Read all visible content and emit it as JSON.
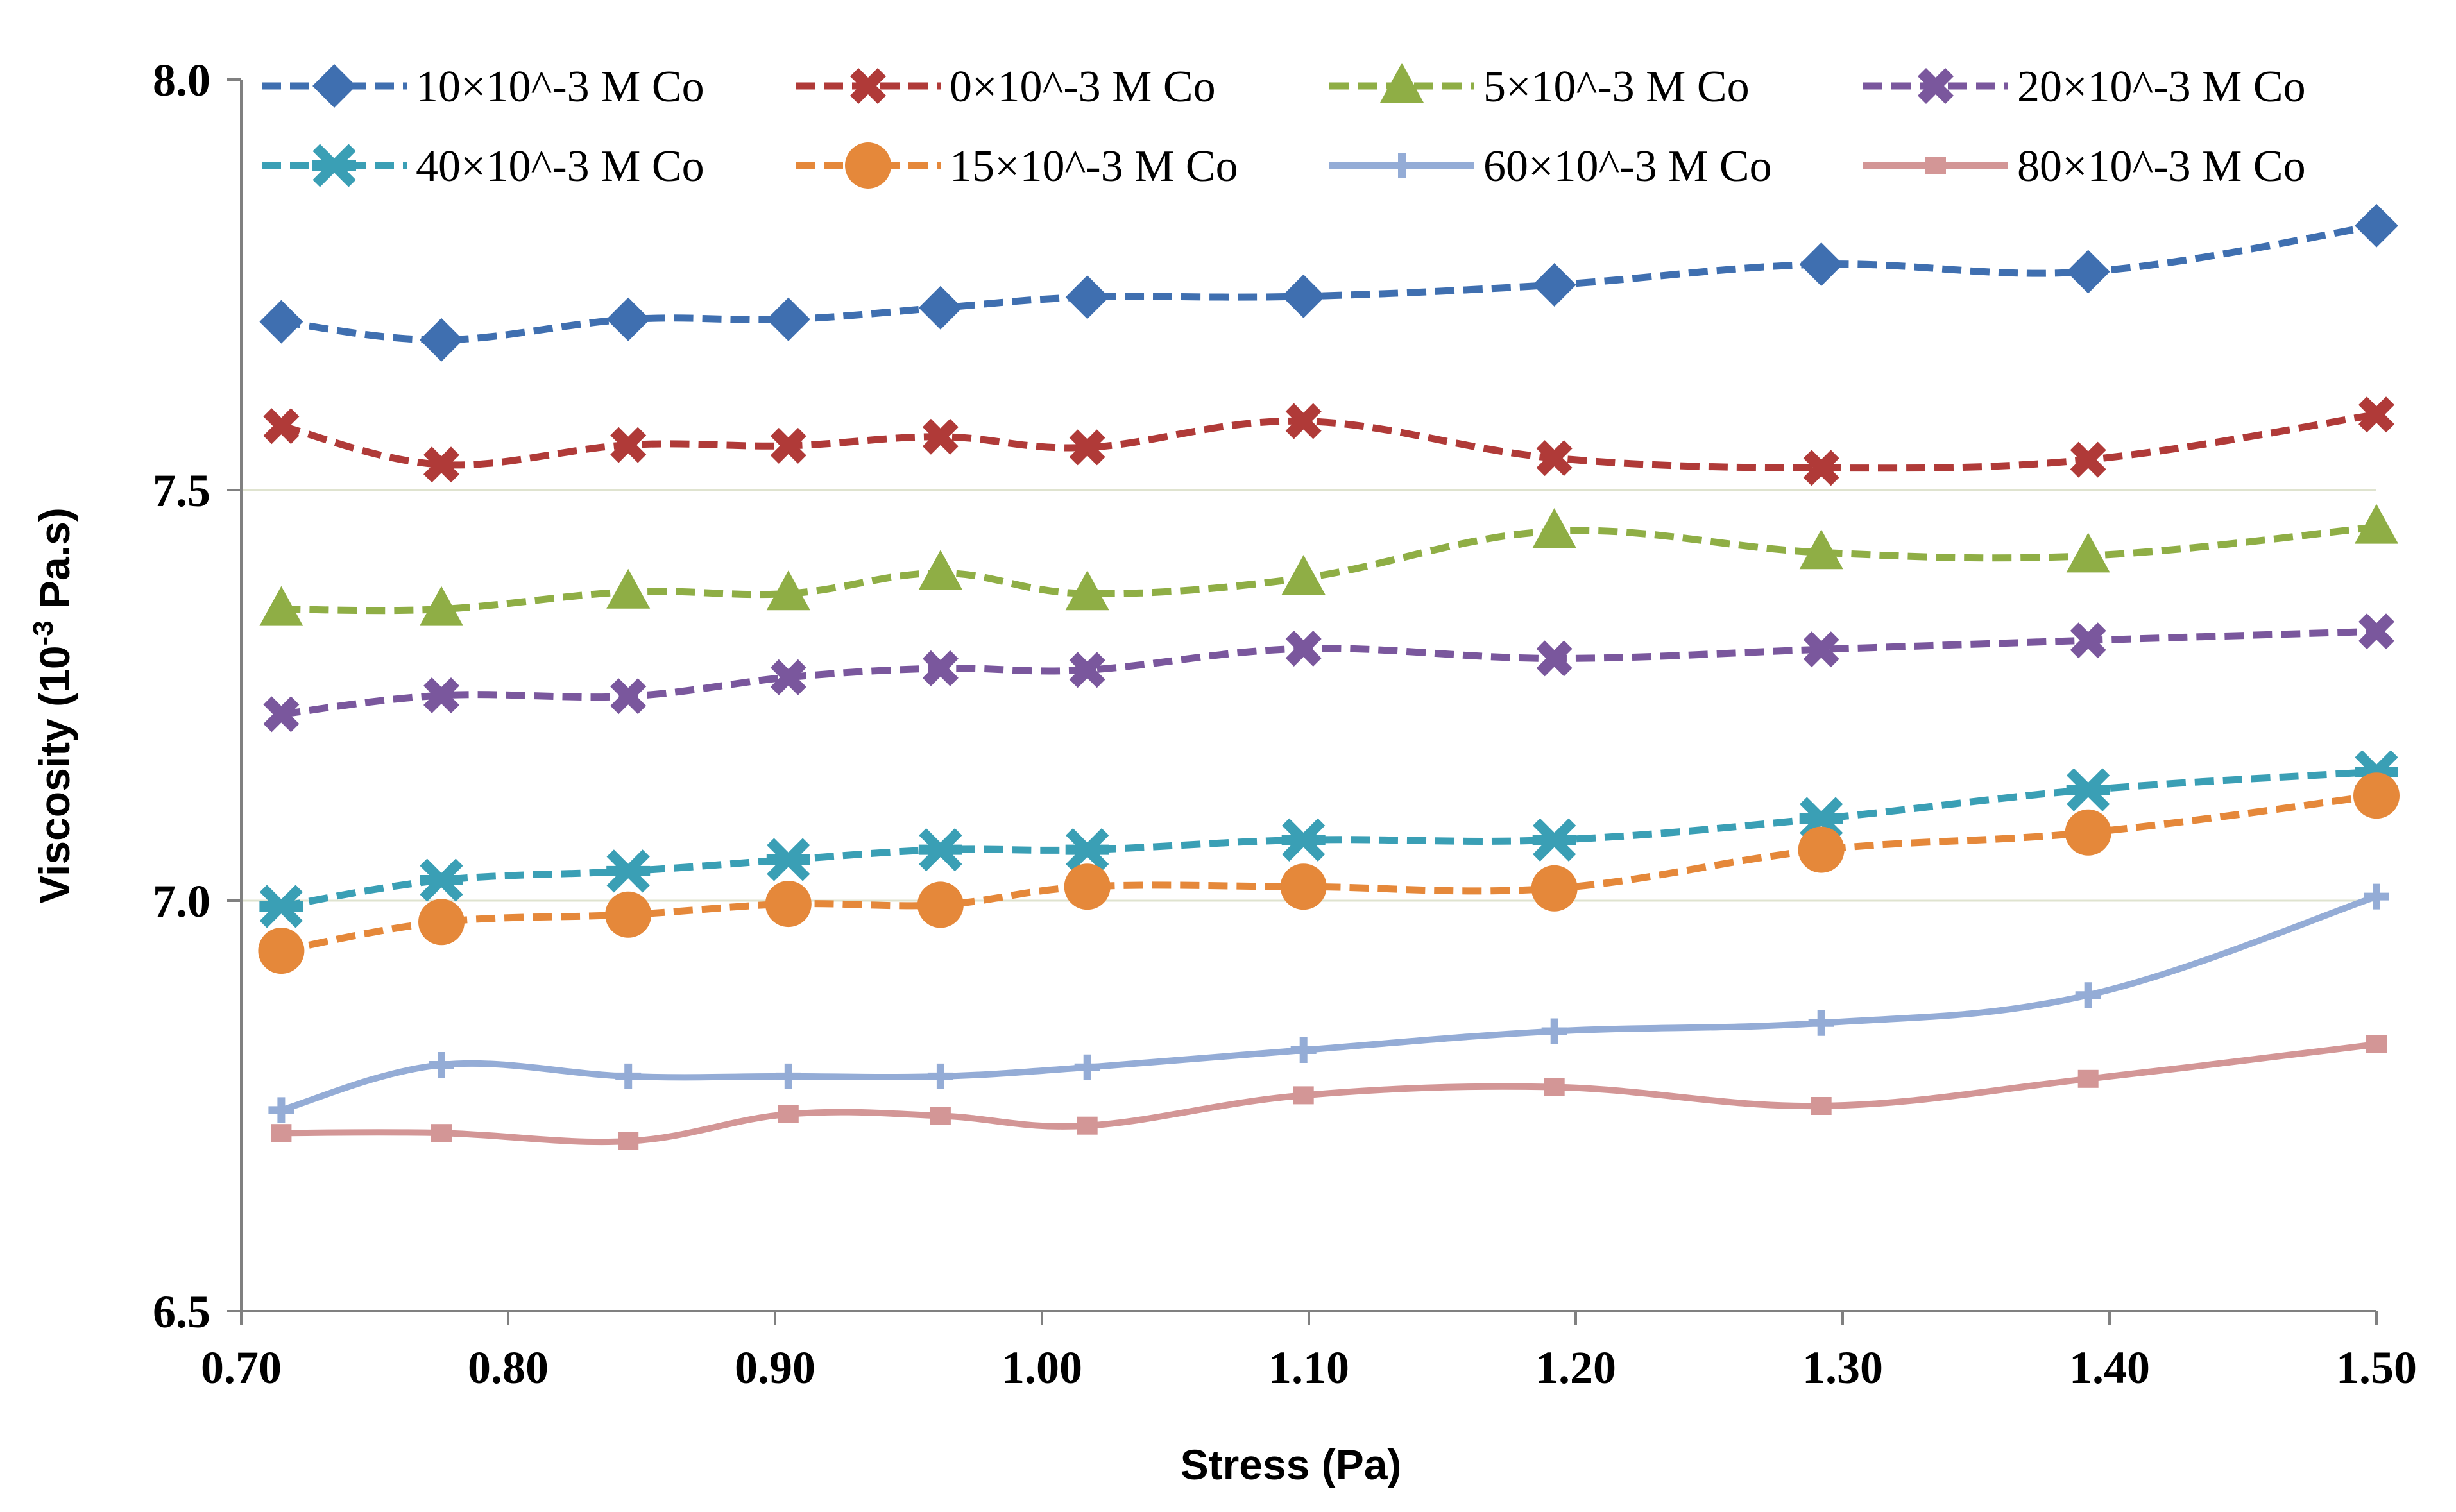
{
  "chart_data": {
    "type": "line",
    "title": "",
    "xlabel": "Stress (Pa)",
    "ylabel_main": "Viscosity (10",
    "ylabel_sup": "-3",
    "ylabel_tail": " Pa.s)",
    "xlim": [
      0.7,
      1.5
    ],
    "ylim": [
      6.5,
      8.0
    ],
    "x_ticks": [
      0.7,
      0.8,
      0.9,
      1.0,
      1.1,
      1.2,
      1.3,
      1.4,
      1.5
    ],
    "x_tick_labels": [
      "0.70",
      "0.80",
      "0.90",
      "1.00",
      "1.10",
      "1.20",
      "1.30",
      "1.40",
      "1.50"
    ],
    "y_ticks": [
      6.5,
      7.0,
      7.5,
      8.0
    ],
    "y_tick_labels": [
      "6.5",
      "7.0",
      "7.5",
      "8.0"
    ],
    "grid": "horizontal",
    "legend_position": "top",
    "series": [
      {
        "name": "10×10^-3 M Co",
        "color": "#3f6fb0",
        "marker": "diamond",
        "dash": "dashed",
        "points": [
          [
            0.715,
            7.705
          ],
          [
            0.775,
            7.683
          ],
          [
            0.845,
            7.708
          ],
          [
            0.905,
            7.708
          ],
          [
            0.962,
            7.722
          ],
          [
            1.017,
            7.735
          ],
          [
            1.098,
            7.736
          ],
          [
            1.192,
            7.75
          ],
          [
            1.292,
            7.775
          ],
          [
            1.392,
            7.766
          ],
          [
            1.5,
            7.822
          ]
        ]
      },
      {
        "name": "0×10^-3 M Co",
        "color": "#b03a38",
        "marker": "cross",
        "dash": "dashed",
        "points": [
          [
            0.715,
            7.578
          ],
          [
            0.775,
            7.531
          ],
          [
            0.845,
            7.555
          ],
          [
            0.905,
            7.554
          ],
          [
            0.962,
            7.565
          ],
          [
            1.017,
            7.552
          ],
          [
            1.098,
            7.584
          ],
          [
            1.192,
            7.539
          ],
          [
            1.292,
            7.527
          ],
          [
            1.392,
            7.537
          ],
          [
            1.5,
            7.592
          ]
        ]
      },
      {
        "name": "5×10^-3 M Co",
        "color": "#8fae45",
        "marker": "triangle",
        "dash": "dashed",
        "points": [
          [
            0.715,
            7.355
          ],
          [
            0.775,
            7.355
          ],
          [
            0.845,
            7.376
          ],
          [
            0.905,
            7.374
          ],
          [
            0.962,
            7.399
          ],
          [
            1.017,
            7.374
          ],
          [
            1.098,
            7.393
          ],
          [
            1.192,
            7.45
          ],
          [
            1.292,
            7.424
          ],
          [
            1.392,
            7.42
          ],
          [
            1.5,
            7.455
          ]
        ]
      },
      {
        "name": "20×10^-3 M Co",
        "color": "#7a579d",
        "marker": "cross",
        "dash": "dashed",
        "points": [
          [
            0.715,
            7.227
          ],
          [
            0.775,
            7.25
          ],
          [
            0.845,
            7.249
          ],
          [
            0.905,
            7.272
          ],
          [
            0.962,
            7.283
          ],
          [
            1.017,
            7.281
          ],
          [
            1.098,
            7.307
          ],
          [
            1.192,
            7.295
          ],
          [
            1.292,
            7.306
          ],
          [
            1.392,
            7.317
          ],
          [
            1.5,
            7.328
          ]
        ]
      },
      {
        "name": "40×10^-3 M Co",
        "color": "#3a9fb5",
        "marker": "star",
        "dash": "dashed",
        "points": [
          [
            0.715,
            6.993
          ],
          [
            0.775,
            7.025
          ],
          [
            0.845,
            7.036
          ],
          [
            0.905,
            7.05
          ],
          [
            0.962,
            7.062
          ],
          [
            1.017,
            7.062
          ],
          [
            1.098,
            7.074
          ],
          [
            1.192,
            7.074
          ],
          [
            1.292,
            7.1
          ],
          [
            1.392,
            7.135
          ],
          [
            1.5,
            7.157
          ]
        ]
      },
      {
        "name": "15×10^-3 M Co",
        "color": "#e5883a",
        "marker": "circle",
        "dash": "dashed",
        "points": [
          [
            0.715,
            6.939
          ],
          [
            0.775,
            6.974
          ],
          [
            0.845,
            6.983
          ],
          [
            0.905,
            6.996
          ],
          [
            0.962,
            6.995
          ],
          [
            1.017,
            7.017
          ],
          [
            1.098,
            7.017
          ],
          [
            1.192,
            7.015
          ],
          [
            1.292,
            7.062
          ],
          [
            1.392,
            7.083
          ],
          [
            1.5,
            7.128
          ]
        ]
      },
      {
        "name": "60×10^-3 M Co",
        "color": "#94acd6",
        "marker": "plus",
        "dash": "solid",
        "points": [
          [
            0.715,
            6.745
          ],
          [
            0.775,
            6.8
          ],
          [
            0.845,
            6.786
          ],
          [
            0.905,
            6.786
          ],
          [
            0.962,
            6.786
          ],
          [
            1.017,
            6.797
          ],
          [
            1.098,
            6.818
          ],
          [
            1.192,
            6.841
          ],
          [
            1.292,
            6.851
          ],
          [
            1.392,
            6.885
          ],
          [
            1.5,
            7.005
          ]
        ]
      },
      {
        "name": "80×10^-3 M Co",
        "color": "#d39696",
        "marker": "square",
        "dash": "solid",
        "points": [
          [
            0.715,
            6.717
          ],
          [
            0.775,
            6.717
          ],
          [
            0.845,
            6.707
          ],
          [
            0.905,
            6.74
          ],
          [
            0.962,
            6.738
          ],
          [
            1.017,
            6.726
          ],
          [
            1.098,
            6.763
          ],
          [
            1.192,
            6.773
          ],
          [
            1.292,
            6.75
          ],
          [
            1.392,
            6.783
          ],
          [
            1.5,
            6.825
          ]
        ]
      }
    ]
  }
}
